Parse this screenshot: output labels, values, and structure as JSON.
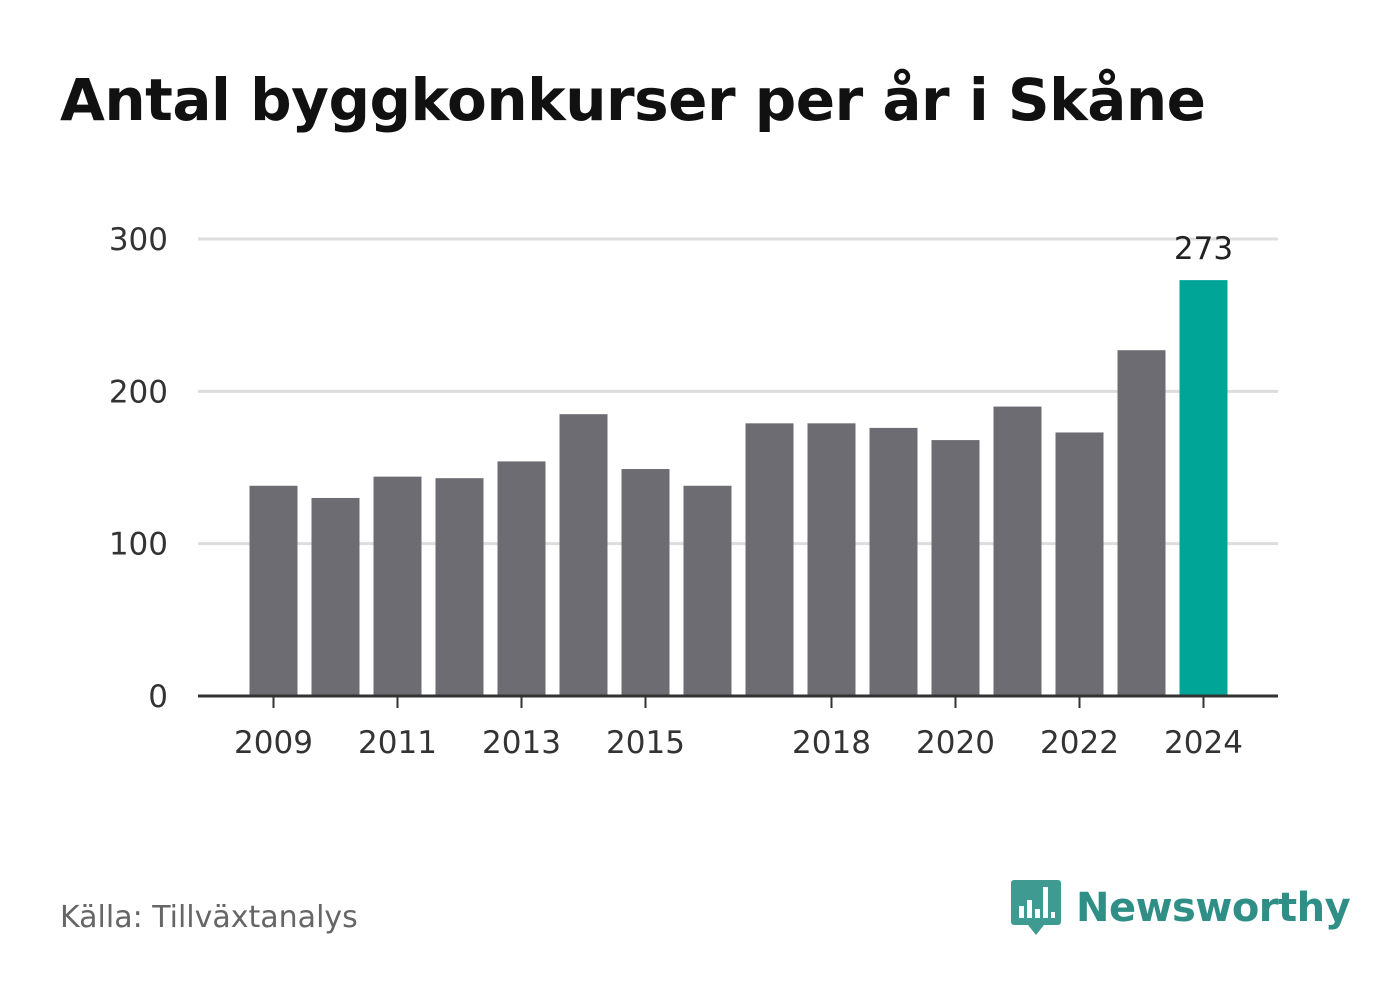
{
  "title": "Antal byggkonkurser per år i Skåne",
  "source": "Källa: Tillväxtanalys",
  "brand": {
    "name": "Newsworthy",
    "icon": "newsworthy-logo-icon",
    "color": "#3f9a92"
  },
  "chart_data": {
    "type": "bar",
    "categories": [
      "2009",
      "2010",
      "2011",
      "2012",
      "2013",
      "2014",
      "2015",
      "2016",
      "2017",
      "2018",
      "2019",
      "2020",
      "2021",
      "2022",
      "2023",
      "2024"
    ],
    "values": [
      138,
      130,
      144,
      143,
      154,
      185,
      149,
      138,
      179,
      179,
      176,
      168,
      190,
      173,
      227,
      273
    ],
    "highlight_index": 15,
    "highlight_label": "273",
    "colors": {
      "bar": "#6d6c72",
      "highlight": "#00a598",
      "grid": "#dddddd",
      "axis": "#333333"
    },
    "ylim": [
      0,
      300
    ],
    "yticks": [
      "0",
      "100",
      "200",
      "300"
    ],
    "xticks": [
      "2009",
      "2011",
      "2013",
      "2015",
      "2018",
      "2020",
      "2022",
      "2024"
    ],
    "xlabel": "",
    "ylabel": "",
    "grid": true
  }
}
